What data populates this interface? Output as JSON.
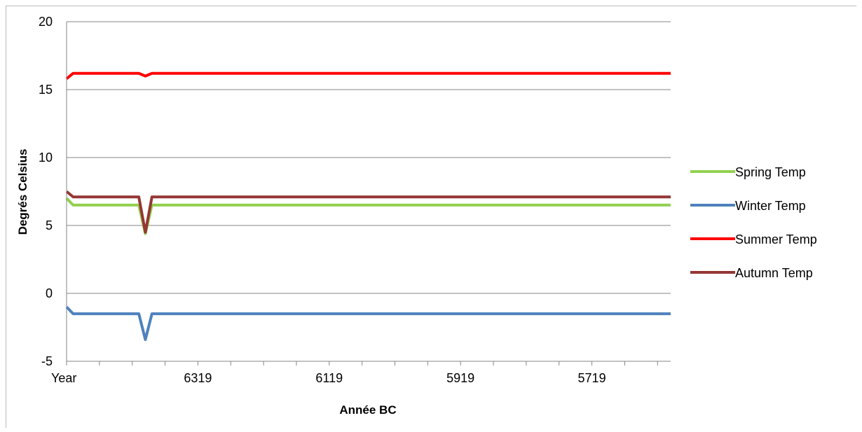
{
  "chart_data": {
    "type": "line",
    "title": "",
    "xlabel": "Année BC",
    "ylabel": "Degrés Celsius",
    "ylim": [
      -5,
      20
    ],
    "yticks": [
      -5,
      0,
      5,
      10,
      15,
      20
    ],
    "grid": true,
    "legend_position": "right",
    "x_start_label": "Year",
    "x_tick_labels": [
      "Year",
      "6319",
      "6119",
      "5919",
      "5719"
    ],
    "x": [
      6519,
      6509,
      6499,
      6489,
      6479,
      6469,
      6459,
      6449,
      6439,
      6429,
      6419,
      6409,
      6399,
      6389,
      6379,
      6369,
      6359,
      6349,
      6339,
      6329,
      6319,
      6309,
      6299,
      6289,
      6279,
      6269,
      6259,
      6249,
      6239,
      6229,
      6219,
      6209,
      6199,
      6189,
      6179,
      6169,
      6159,
      6149,
      6139,
      6129,
      6119,
      6109,
      6099,
      6089,
      6079,
      6069,
      6059,
      6049,
      6039,
      6029,
      6019,
      6009,
      5999,
      5989,
      5979,
      5969,
      5959,
      5949,
      5939,
      5929,
      5919,
      5909,
      5899,
      5889,
      5879,
      5869,
      5859,
      5849,
      5839,
      5829,
      5819,
      5809,
      5799,
      5789,
      5779,
      5769,
      5759,
      5749,
      5739,
      5729,
      5719,
      5709,
      5699,
      5689,
      5679,
      5669,
      5659,
      5649,
      5639,
      5629,
      5619,
      5609,
      5599
    ],
    "series": [
      {
        "name": "Spring Temp",
        "color": "#92d050",
        "values": [
          7.0,
          6.5,
          6.5,
          6.5,
          6.5,
          6.5,
          6.5,
          6.5,
          6.5,
          6.5,
          6.5,
          6.5,
          4.4,
          6.5,
          6.5,
          6.5,
          6.5,
          6.5,
          6.5,
          6.5,
          6.5,
          6.5,
          6.5,
          6.5,
          6.5,
          6.5,
          6.5,
          6.5,
          6.5,
          6.5,
          6.5,
          6.5,
          6.5,
          6.5,
          6.5,
          6.5,
          6.5,
          6.5,
          6.5,
          6.5,
          6.5,
          6.5,
          6.5,
          6.5,
          6.5,
          6.5,
          6.5,
          6.5,
          6.5,
          6.5,
          6.5,
          6.5,
          6.5,
          6.5,
          6.5,
          6.5,
          6.5,
          6.5,
          6.5,
          6.5,
          6.5,
          6.5,
          6.5,
          6.5,
          6.5,
          6.5,
          6.5,
          6.5,
          6.5,
          6.5,
          6.5,
          6.5,
          6.5,
          6.5,
          6.5,
          6.5,
          6.5,
          6.5,
          6.5,
          6.5,
          6.5,
          6.5,
          6.5,
          6.5,
          6.5,
          6.5,
          6.5,
          6.5,
          6.5,
          6.5,
          6.5,
          6.5,
          6.5
        ]
      },
      {
        "name": "Winter Temp",
        "color": "#4f81bd",
        "values": [
          -1.0,
          -1.5,
          -1.5,
          -1.5,
          -1.5,
          -1.5,
          -1.5,
          -1.5,
          -1.5,
          -1.5,
          -1.5,
          -1.5,
          -3.4,
          -1.5,
          -1.5,
          -1.5,
          -1.5,
          -1.5,
          -1.5,
          -1.5,
          -1.5,
          -1.5,
          -1.5,
          -1.5,
          -1.5,
          -1.5,
          -1.5,
          -1.5,
          -1.5,
          -1.5,
          -1.5,
          -1.5,
          -1.5,
          -1.5,
          -1.5,
          -1.5,
          -1.5,
          -1.5,
          -1.5,
          -1.5,
          -1.5,
          -1.5,
          -1.5,
          -1.5,
          -1.5,
          -1.5,
          -1.5,
          -1.5,
          -1.5,
          -1.5,
          -1.5,
          -1.5,
          -1.5,
          -1.5,
          -1.5,
          -1.5,
          -1.5,
          -1.5,
          -1.5,
          -1.5,
          -1.5,
          -1.5,
          -1.5,
          -1.5,
          -1.5,
          -1.5,
          -1.5,
          -1.5,
          -1.5,
          -1.5,
          -1.5,
          -1.5,
          -1.5,
          -1.5,
          -1.5,
          -1.5,
          -1.5,
          -1.5,
          -1.5,
          -1.5,
          -1.5,
          -1.5,
          -1.5,
          -1.5,
          -1.5,
          -1.5,
          -1.5,
          -1.5,
          -1.5,
          -1.5,
          -1.5,
          -1.5,
          -1.5
        ]
      },
      {
        "name": "Summer Temp",
        "color": "#ff0000",
        "values": [
          15.8,
          16.2,
          16.2,
          16.2,
          16.2,
          16.2,
          16.2,
          16.2,
          16.2,
          16.2,
          16.2,
          16.2,
          16.0,
          16.2,
          16.2,
          16.2,
          16.2,
          16.2,
          16.2,
          16.2,
          16.2,
          16.2,
          16.2,
          16.2,
          16.2,
          16.2,
          16.2,
          16.2,
          16.2,
          16.2,
          16.2,
          16.2,
          16.2,
          16.2,
          16.2,
          16.2,
          16.2,
          16.2,
          16.2,
          16.2,
          16.2,
          16.2,
          16.2,
          16.2,
          16.2,
          16.2,
          16.2,
          16.2,
          16.2,
          16.2,
          16.2,
          16.2,
          16.2,
          16.2,
          16.2,
          16.2,
          16.2,
          16.2,
          16.2,
          16.2,
          16.2,
          16.2,
          16.2,
          16.2,
          16.2,
          16.2,
          16.2,
          16.2,
          16.2,
          16.2,
          16.2,
          16.2,
          16.2,
          16.2,
          16.2,
          16.2,
          16.2,
          16.2,
          16.2,
          16.2,
          16.2,
          16.2,
          16.2,
          16.2,
          16.2,
          16.2,
          16.2,
          16.2,
          16.2,
          16.2,
          16.2,
          16.2,
          16.2
        ]
      },
      {
        "name": "Autumn Temp",
        "color": "#953735",
        "values": [
          7.5,
          7.1,
          7.1,
          7.1,
          7.1,
          7.1,
          7.1,
          7.1,
          7.1,
          7.1,
          7.1,
          7.1,
          4.5,
          7.1,
          7.1,
          7.1,
          7.1,
          7.1,
          7.1,
          7.1,
          7.1,
          7.1,
          7.1,
          7.1,
          7.1,
          7.1,
          7.1,
          7.1,
          7.1,
          7.1,
          7.1,
          7.1,
          7.1,
          7.1,
          7.1,
          7.1,
          7.1,
          7.1,
          7.1,
          7.1,
          7.1,
          7.1,
          7.1,
          7.1,
          7.1,
          7.1,
          7.1,
          7.1,
          7.1,
          7.1,
          7.1,
          7.1,
          7.1,
          7.1,
          7.1,
          7.1,
          7.1,
          7.1,
          7.1,
          7.1,
          7.1,
          7.1,
          7.1,
          7.1,
          7.1,
          7.1,
          7.1,
          7.1,
          7.1,
          7.1,
          7.1,
          7.1,
          7.1,
          7.1,
          7.1,
          7.1,
          7.1,
          7.1,
          7.1,
          7.1,
          7.1,
          7.1,
          7.1,
          7.1,
          7.1,
          7.1,
          7.1,
          7.1,
          7.1,
          7.1,
          7.1,
          7.1,
          7.1
        ]
      }
    ]
  }
}
